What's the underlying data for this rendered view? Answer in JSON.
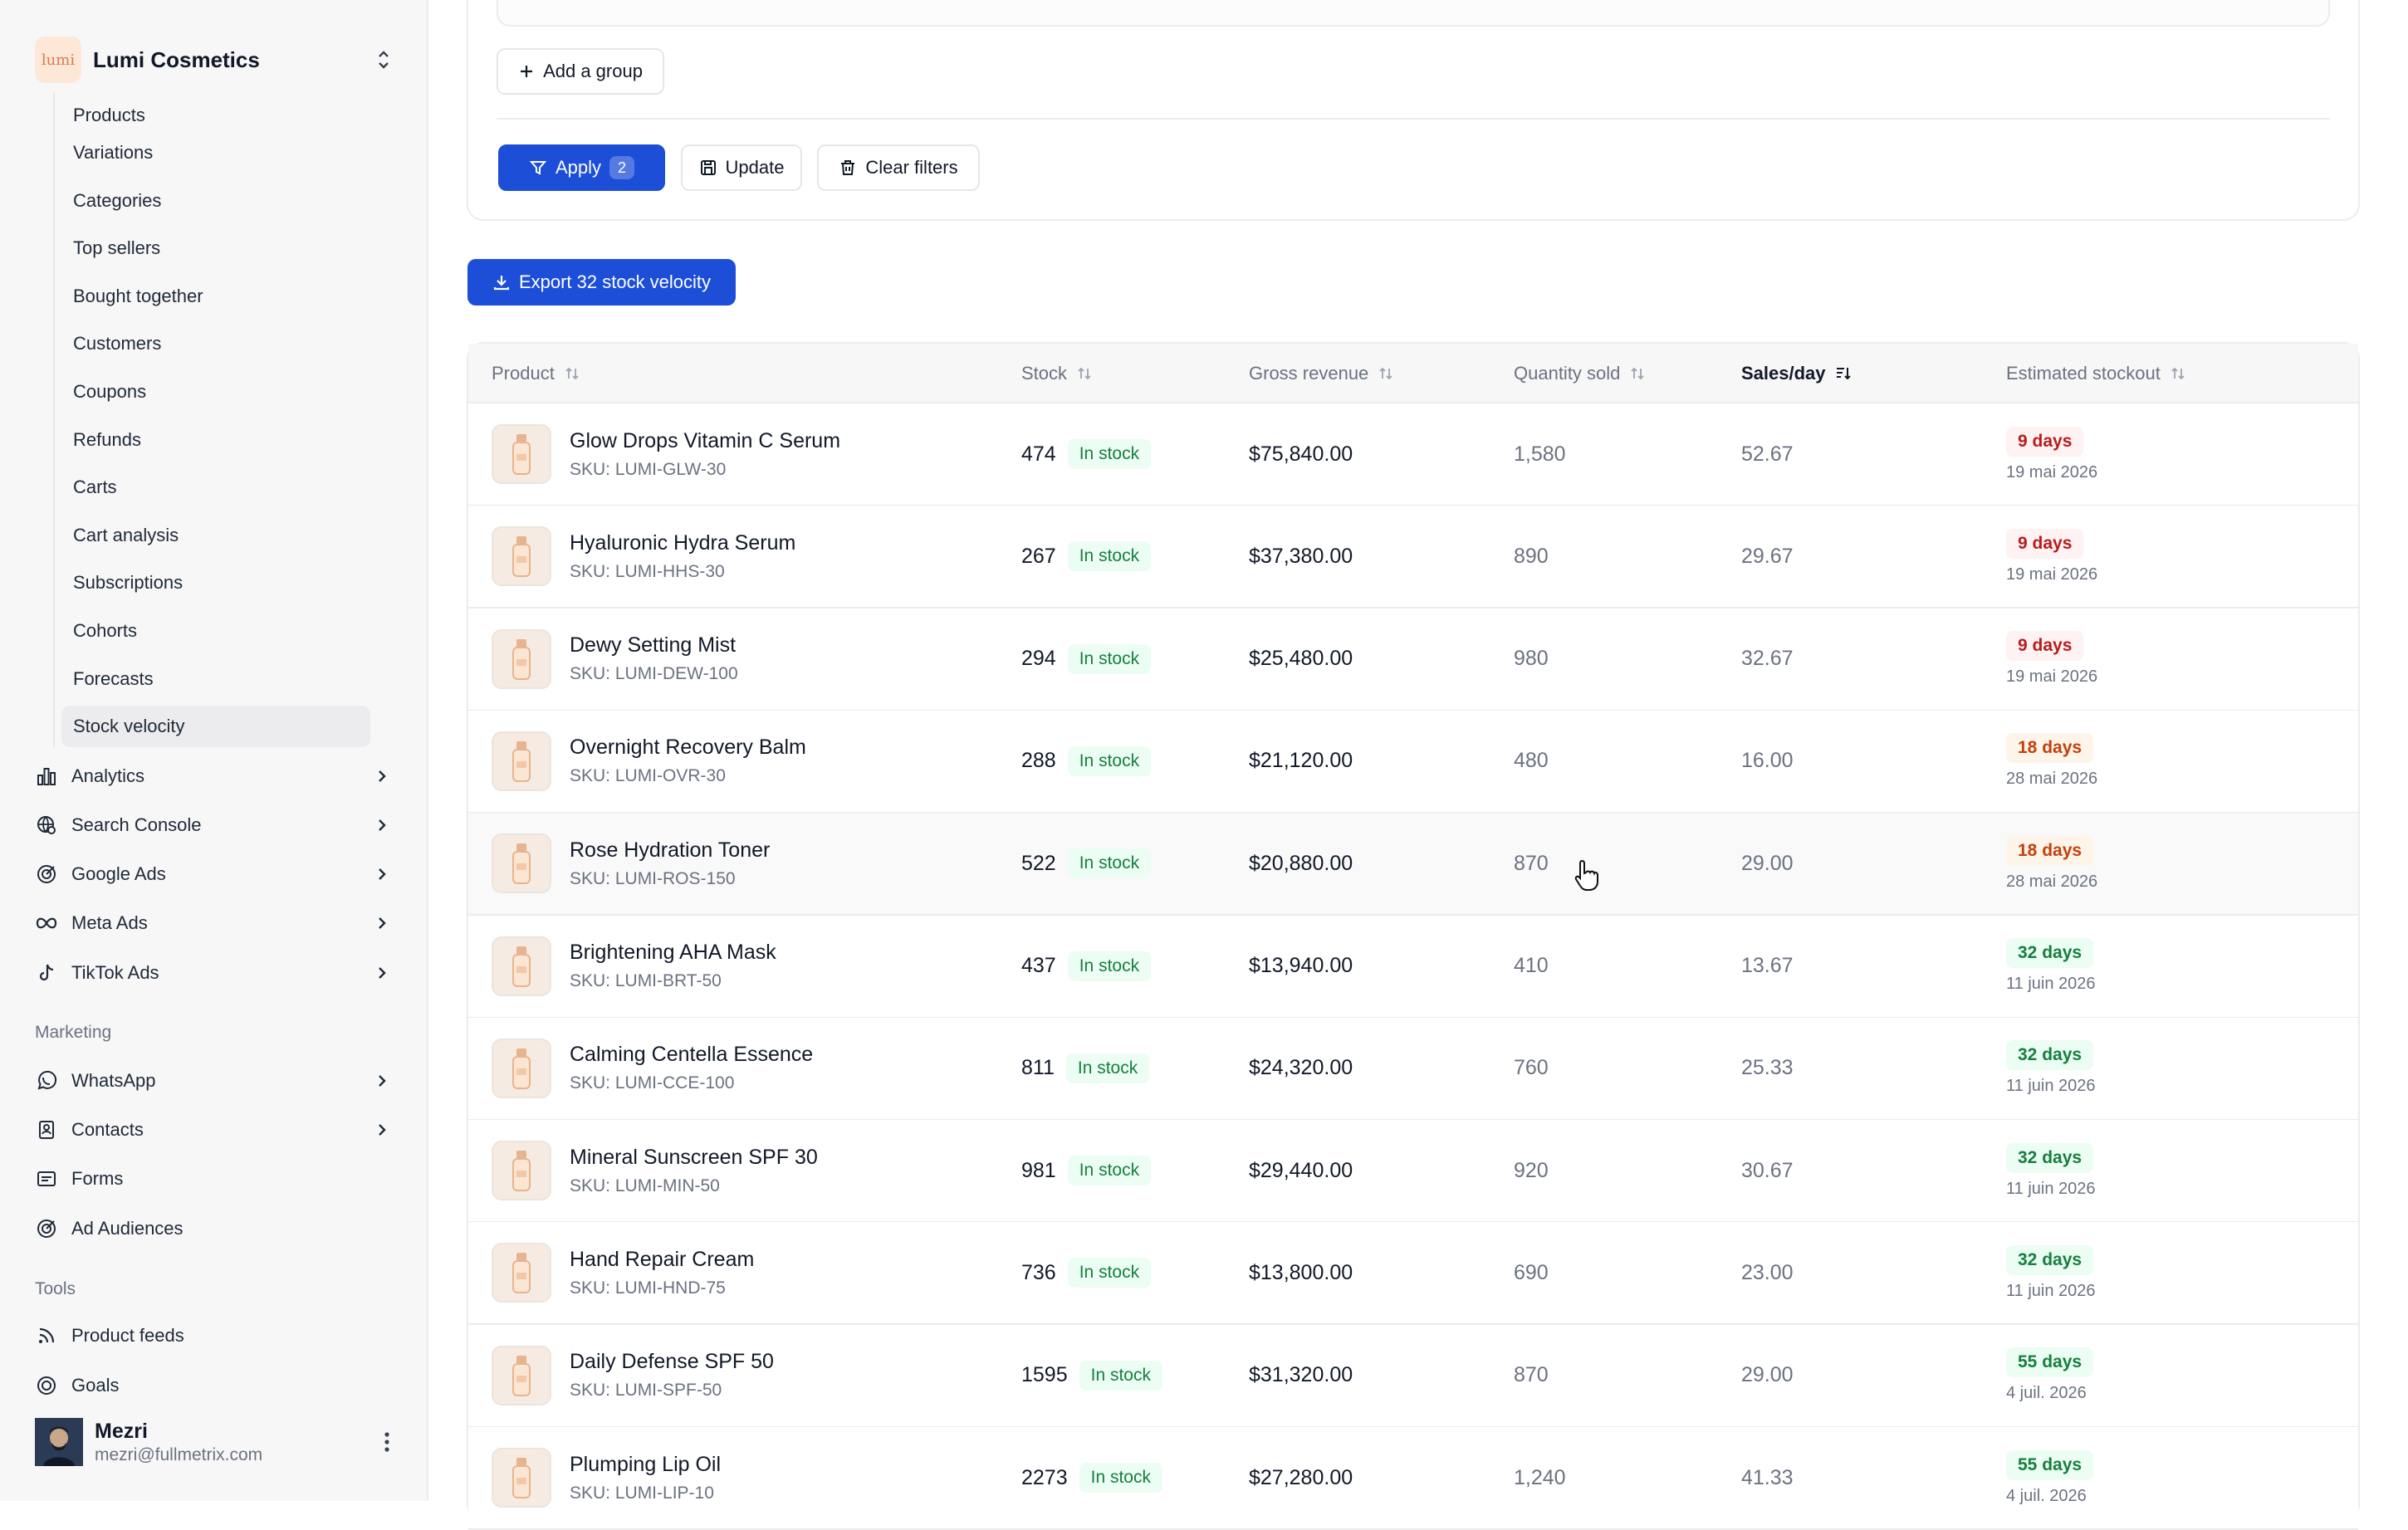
{
  "brand": {
    "name": "Lumi Cosmetics",
    "logo_text": "lumi"
  },
  "subnav": {
    "partial_top": "Products",
    "items": [
      "Variations",
      "Categories",
      "Top sellers",
      "Bought together",
      "Customers",
      "Coupons",
      "Refunds",
      "Carts",
      "Cart analysis",
      "Subscriptions",
      "Cohorts",
      "Forecasts",
      "Stock velocity"
    ],
    "active": "Stock velocity"
  },
  "nav": {
    "analytics": "Analytics",
    "search_console": "Search Console",
    "google_ads": "Google Ads",
    "meta_ads": "Meta Ads",
    "tiktok_ads": "TikTok Ads",
    "marketing_label": "Marketing",
    "whatsapp": "WhatsApp",
    "contacts": "Contacts",
    "forms": "Forms",
    "ad_audiences": "Ad Audiences",
    "tools_label": "Tools",
    "product_feeds": "Product feeds",
    "goals": "Goals"
  },
  "user": {
    "name": "Mezri",
    "email": "mezri@fullmetrix.com"
  },
  "filters": {
    "add_group": "Add a group",
    "apply": "Apply",
    "apply_count": "2",
    "update": "Update",
    "clear": "Clear filters"
  },
  "export_label": "Export 32 stock velocity",
  "table": {
    "headers": {
      "product": "Product",
      "stock": "Stock",
      "gross_revenue": "Gross revenue",
      "quantity_sold": "Quantity sold",
      "sales_day": "Sales/day",
      "estimated_stockout": "Estimated stockout"
    },
    "in_stock_label": "In stock",
    "rows": [
      {
        "name": "Glow Drops Vitamin C Serum",
        "sku": "SKU: LUMI-GLW-30",
        "stock": "474",
        "revenue": "$75,840.00",
        "qty": "1,580",
        "sales_day": "52.67",
        "stockout": "9 days",
        "date": "19 mai 2026",
        "level": "red"
      },
      {
        "name": "Hyaluronic Hydra Serum",
        "sku": "SKU: LUMI-HHS-30",
        "stock": "267",
        "revenue": "$37,380.00",
        "qty": "890",
        "sales_day": "29.67",
        "stockout": "9 days",
        "date": "19 mai 2026",
        "level": "red"
      },
      {
        "name": "Dewy Setting Mist",
        "sku": "SKU: LUMI-DEW-100",
        "stock": "294",
        "revenue": "$25,480.00",
        "qty": "980",
        "sales_day": "32.67",
        "stockout": "9 days",
        "date": "19 mai 2026",
        "level": "red"
      },
      {
        "name": "Overnight Recovery Balm",
        "sku": "SKU: LUMI-OVR-30",
        "stock": "288",
        "revenue": "$21,120.00",
        "qty": "480",
        "sales_day": "16.00",
        "stockout": "18 days",
        "date": "28 mai 2026",
        "level": "orange"
      },
      {
        "name": "Rose Hydration Toner",
        "sku": "SKU: LUMI-ROS-150",
        "stock": "522",
        "revenue": "$20,880.00",
        "qty": "870",
        "sales_day": "29.00",
        "stockout": "18 days",
        "date": "28 mai 2026",
        "level": "orange"
      },
      {
        "name": "Brightening AHA Mask",
        "sku": "SKU: LUMI-BRT-50",
        "stock": "437",
        "revenue": "$13,940.00",
        "qty": "410",
        "sales_day": "13.67",
        "stockout": "32 days",
        "date": "11 juin 2026",
        "level": "green"
      },
      {
        "name": "Calming Centella Essence",
        "sku": "SKU: LUMI-CCE-100",
        "stock": "811",
        "revenue": "$24,320.00",
        "qty": "760",
        "sales_day": "25.33",
        "stockout": "32 days",
        "date": "11 juin 2026",
        "level": "green"
      },
      {
        "name": "Mineral Sunscreen SPF 30",
        "sku": "SKU: LUMI-MIN-50",
        "stock": "981",
        "revenue": "$29,440.00",
        "qty": "920",
        "sales_day": "30.67",
        "stockout": "32 days",
        "date": "11 juin 2026",
        "level": "green"
      },
      {
        "name": "Hand Repair Cream",
        "sku": "SKU: LUMI-HND-75",
        "stock": "736",
        "revenue": "$13,800.00",
        "qty": "690",
        "sales_day": "23.00",
        "stockout": "32 days",
        "date": "11 juin 2026",
        "level": "green"
      },
      {
        "name": "Daily Defense SPF 50",
        "sku": "SKU: LUMI-SPF-50",
        "stock": "1595",
        "revenue": "$31,320.00",
        "qty": "870",
        "sales_day": "29.00",
        "stockout": "55 days",
        "date": "4 juil. 2026",
        "level": "green"
      },
      {
        "name": "Plumping Lip Oil",
        "sku": "SKU: LUMI-LIP-10",
        "stock": "2273",
        "revenue": "$27,280.00",
        "qty": "1,240",
        "sales_day": "41.33",
        "stockout": "55 days",
        "date": "4 juil. 2026",
        "level": "green"
      }
    ]
  }
}
